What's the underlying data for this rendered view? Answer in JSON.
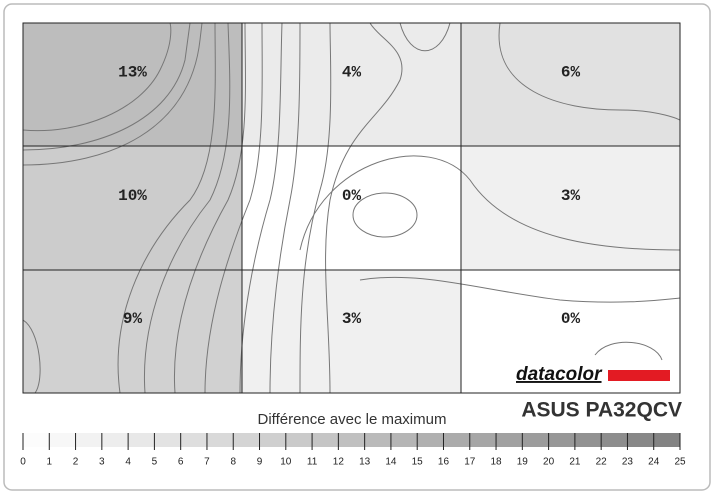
{
  "chart_data": {
    "type": "heatmap",
    "title": "ASUS PA32QCV",
    "colorbar_label": "Différence avec le maximum",
    "brand": "datacolor",
    "values": [
      [
        13,
        4,
        6
      ],
      [
        10,
        0,
        3
      ],
      [
        9,
        3,
        0
      ]
    ],
    "value_labels": [
      [
        "13%",
        "4%",
        "6%"
      ],
      [
        "10%",
        "0%",
        "3%"
      ],
      [
        "9%",
        "3%",
        "0%"
      ]
    ],
    "clim": [
      0,
      25
    ],
    "cticks": [
      0,
      1,
      2,
      3,
      4,
      5,
      6,
      7,
      8,
      9,
      10,
      11,
      12,
      13,
      14,
      15,
      16,
      17,
      18,
      19,
      20,
      21,
      22,
      23,
      24,
      25
    ],
    "colors": [
      "#ffffff",
      "#808080"
    ]
  }
}
